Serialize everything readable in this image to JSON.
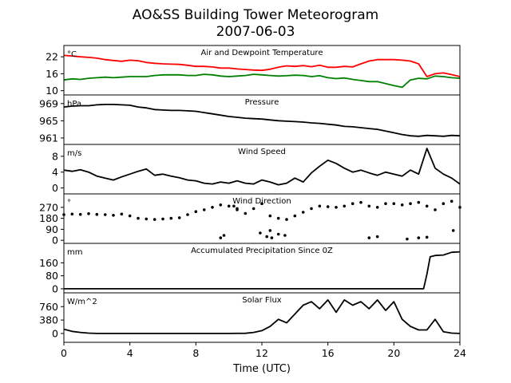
{
  "title": "AO&SS Building Tower Meteorogram",
  "subtitle": "2007-06-03",
  "xlabel": "Time (UTC)",
  "chart_data": [
    {
      "type": "line",
      "title": "Air and Dewpoint Temperature",
      "unit": "°C",
      "ylim": [
        8.5,
        26
      ],
      "yticks": [
        10,
        16,
        22
      ],
      "ytick_labels": [
        "10",
        "16",
        "22"
      ],
      "series": [
        {
          "color": "#ff0000",
          "x": [
            0,
            0.5,
            1,
            1.5,
            2,
            2.5,
            3,
            3.5,
            4,
            4.5,
            5,
            5.5,
            6,
            6.5,
            7,
            7.5,
            8,
            8.5,
            9,
            9.5,
            10,
            10.5,
            11,
            11.5,
            12,
            12.5,
            13,
            13.5,
            14,
            14.5,
            15,
            15.5,
            16,
            16.5,
            17,
            17.5,
            18,
            18.5,
            19,
            19.5,
            20,
            20.5,
            21,
            21.5,
            22,
            22.5,
            23,
            23.5,
            24
          ],
          "y": [
            22.5,
            22.3,
            22.0,
            21.8,
            21.5,
            21.0,
            20.7,
            20.4,
            20.8,
            20.6,
            20.0,
            19.7,
            19.5,
            19.4,
            19.3,
            19.0,
            18.6,
            18.6,
            18.4,
            18.0,
            18.0,
            17.7,
            17.5,
            17.3,
            17.2,
            17.6,
            18.3,
            18.8,
            18.6,
            18.9,
            18.5,
            19.0,
            18.3,
            18.3,
            18.6,
            18.4,
            19.5,
            20.5,
            21.0,
            21.0,
            21.0,
            20.8,
            20.5,
            19.5,
            15.0,
            16.0,
            16.3,
            15.7,
            15.0
          ]
        },
        {
          "color": "#008000",
          "x": [
            0,
            0.5,
            1,
            1.5,
            2,
            2.5,
            3,
            3.5,
            4,
            4.5,
            5,
            5.5,
            6,
            6.5,
            7,
            7.5,
            8,
            8.5,
            9,
            9.5,
            10,
            10.5,
            11,
            11.5,
            12,
            12.5,
            13,
            13.5,
            14,
            14.5,
            15,
            15.5,
            16,
            16.5,
            17,
            17.5,
            18,
            18.5,
            19,
            19.5,
            20,
            20.5,
            21,
            21.5,
            22,
            22.5,
            23,
            23.5,
            24
          ],
          "y": [
            13.8,
            14.2,
            14.0,
            14.4,
            14.6,
            14.8,
            14.6,
            14.8,
            15.0,
            15.0,
            15.0,
            15.4,
            15.6,
            15.6,
            15.6,
            15.4,
            15.4,
            15.8,
            15.6,
            15.2,
            15.0,
            15.2,
            15.4,
            15.8,
            15.6,
            15.4,
            15.2,
            15.3,
            15.5,
            15.4,
            15.0,
            15.3,
            14.6,
            14.3,
            14.5,
            14.0,
            13.6,
            13.2,
            13.2,
            12.5,
            11.8,
            11.2,
            13.8,
            14.4,
            14.2,
            15.2,
            15.0,
            14.6,
            14.4
          ]
        }
      ]
    },
    {
      "type": "line",
      "title": "Pressure",
      "unit": "hPa",
      "ylim": [
        959.5,
        971
      ],
      "yticks": [
        961,
        965,
        969
      ],
      "ytick_labels": [
        "961",
        "965",
        "969"
      ],
      "series": [
        {
          "color": "#000000",
          "x": [
            0,
            0.5,
            1,
            1.5,
            2,
            2.5,
            3,
            3.5,
            4,
            4.5,
            5,
            5.5,
            6,
            6.5,
            7,
            7.5,
            8,
            8.5,
            9,
            9.5,
            10,
            10.5,
            11,
            11.5,
            12,
            12.5,
            13,
            13.5,
            14,
            14.5,
            15,
            15.5,
            16,
            16.5,
            17,
            17.5,
            18,
            18.5,
            19,
            19.5,
            20,
            20.5,
            21,
            21.5,
            22,
            22.5,
            23,
            23.5,
            24
          ],
          "y": [
            968.2,
            968.4,
            968.5,
            968.5,
            968.7,
            968.8,
            968.8,
            968.7,
            968.6,
            968.2,
            968.0,
            967.6,
            967.5,
            967.4,
            967.4,
            967.3,
            967.2,
            966.9,
            966.6,
            966.3,
            966.0,
            965.8,
            965.6,
            965.5,
            965.4,
            965.2,
            965.0,
            964.9,
            964.8,
            964.7,
            964.5,
            964.4,
            964.2,
            964.0,
            963.7,
            963.6,
            963.4,
            963.2,
            963.0,
            962.6,
            962.2,
            961.8,
            961.5,
            961.4,
            961.6,
            961.5,
            961.4,
            961.6,
            961.5
          ]
        }
      ]
    },
    {
      "type": "line",
      "title": "Wind Speed",
      "unit": "m/s",
      "ylim": [
        -1.5,
        11
      ],
      "yticks": [
        0,
        4,
        8
      ],
      "ytick_labels": [
        "0",
        "4",
        "8"
      ],
      "series": [
        {
          "color": "#000000",
          "x": [
            0,
            0.5,
            1,
            1.5,
            2,
            2.5,
            3,
            3.5,
            4,
            4.5,
            5,
            5.5,
            6,
            6.5,
            7,
            7.5,
            8,
            8.5,
            9,
            9.5,
            10,
            10.5,
            11,
            11.5,
            12,
            12.5,
            13,
            13.5,
            14,
            14.5,
            15,
            15.5,
            16,
            16.5,
            17,
            17.5,
            18,
            18.5,
            19,
            19.5,
            20,
            20.5,
            21,
            21.5,
            22,
            22.5,
            23,
            23.5,
            24
          ],
          "y": [
            4.5,
            4.2,
            4.6,
            4.0,
            3.0,
            2.5,
            2.0,
            2.8,
            3.5,
            4.2,
            4.8,
            3.2,
            3.5,
            3.0,
            2.6,
            2.0,
            1.8,
            1.2,
            1.0,
            1.5,
            1.2,
            1.8,
            1.2,
            1.0,
            2.0,
            1.5,
            0.8,
            1.2,
            2.5,
            1.5,
            3.8,
            5.5,
            7.0,
            6.2,
            5.0,
            4.0,
            4.5,
            3.8,
            3.2,
            4.0,
            3.5,
            3.0,
            4.5,
            3.5,
            10.0,
            5.0,
            3.5,
            2.5,
            1.0
          ]
        }
      ]
    },
    {
      "type": "scatter",
      "title": "Wind Direction",
      "unit": "°",
      "ylim": [
        -25,
        380
      ],
      "yticks": [
        0,
        90,
        180,
        270
      ],
      "ytick_labels": [
        "0",
        "90",
        "180",
        "270"
      ],
      "series": [
        {
          "color": "#000000",
          "x": [
            0,
            0.5,
            1,
            1.5,
            2,
            2.5,
            3,
            3.5,
            4,
            4.5,
            5,
            5.5,
            6,
            6.5,
            7,
            7.5,
            8,
            8.5,
            9,
            9.5,
            10,
            10.5,
            11,
            11.5,
            12,
            12.5,
            13,
            13.5,
            14,
            14.5,
            15,
            15.5,
            16,
            16.5,
            17,
            17.5,
            18,
            18.5,
            19,
            19.5,
            20,
            20.5,
            21,
            21.5,
            22,
            22.5,
            23,
            23.5,
            24,
            9.5,
            9.7,
            10.3,
            10.5,
            11.9,
            12.3,
            12.5,
            12.6,
            13.0,
            13.4,
            18.5,
            19.0,
            20.8,
            21.5,
            22.0,
            23.6
          ],
          "y": [
            210,
            215,
            212,
            218,
            212,
            210,
            205,
            215,
            200,
            180,
            175,
            170,
            175,
            180,
            185,
            210,
            235,
            250,
            270,
            290,
            280,
            250,
            220,
            260,
            300,
            200,
            180,
            170,
            200,
            230,
            260,
            280,
            275,
            270,
            280,
            300,
            310,
            280,
            270,
            300,
            300,
            290,
            300,
            310,
            280,
            250,
            300,
            320,
            270,
            20,
            40,
            280,
            260,
            60,
            30,
            80,
            20,
            50,
            40,
            20,
            30,
            10,
            20,
            25,
            80
          ]
        }
      ]
    },
    {
      "type": "line",
      "title": "Accumulated Precipitation Since 0Z",
      "unit": "mm",
      "ylim": [
        -25,
        280
      ],
      "yticks": [
        0,
        80,
        160
      ],
      "ytick_labels": [
        "0",
        "80",
        "160"
      ],
      "series": [
        {
          "color": "#000000",
          "x": [
            0,
            21.8,
            22.0,
            22.2,
            22.5,
            23.0,
            23.5,
            24
          ],
          "y": [
            0,
            0,
            90,
            198,
            205,
            208,
            225,
            228
          ]
        }
      ]
    },
    {
      "type": "line",
      "title": "Solar Flux",
      "unit": "W/m^2",
      "ylim": [
        -250,
        1150
      ],
      "yticks": [
        0,
        380,
        760
      ],
      "ytick_labels": [
        "0",
        "380",
        "760"
      ],
      "series": [
        {
          "color": "#000000",
          "x": [
            0,
            0.5,
            1,
            1.5,
            2,
            4,
            6,
            8,
            10,
            11,
            11.5,
            12,
            12.5,
            13,
            13.5,
            14,
            14.5,
            15,
            15.5,
            16,
            16.5,
            17,
            17.5,
            18,
            18.5,
            19,
            19.5,
            20,
            20.5,
            21,
            21.5,
            22,
            22.5,
            23,
            23.5,
            24
          ],
          "y": [
            120,
            60,
            30,
            10,
            0,
            0,
            0,
            0,
            0,
            5,
            30,
            80,
            200,
            400,
            300,
            550,
            800,
            900,
            700,
            950,
            600,
            950,
            800,
            900,
            700,
            950,
            650,
            900,
            400,
            200,
            100,
            100,
            400,
            50,
            10,
            0
          ]
        }
      ]
    }
  ],
  "xaxis": {
    "xlim": [
      0,
      24
    ],
    "xticks": [
      0,
      4,
      8,
      12,
      16,
      20,
      24
    ],
    "xtick_labels": [
      "0",
      "4",
      "8",
      "12",
      "16",
      "20",
      "24"
    ]
  }
}
